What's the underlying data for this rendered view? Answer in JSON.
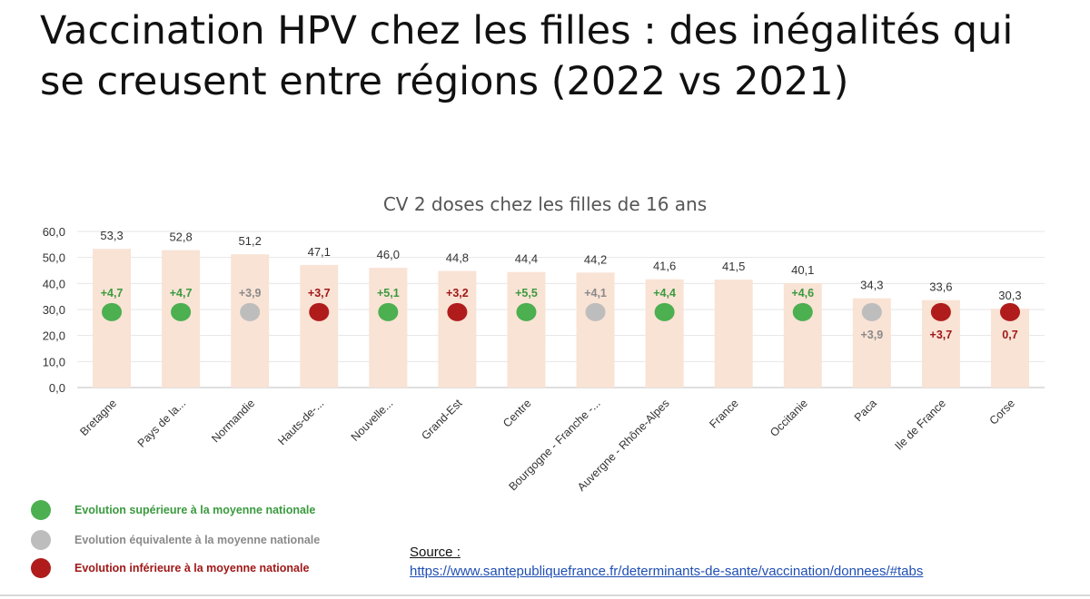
{
  "title": "Vaccination HPV chez les filles : des inégalités qui se creusent entre régions (2022 vs 2021)",
  "colors": {
    "bar": "#f9e3d5",
    "superieure": "#4caf50",
    "equivalente": "#bdbdbd",
    "inferieure": "#b01c1c",
    "superieure_text": "#3a9a3e",
    "equivalente_text": "#8a8a8a",
    "inferieure_text": "#a01818"
  },
  "chart_data": {
    "type": "bar",
    "title": "CV 2 doses chez les filles de 16 ans",
    "xlabel": "",
    "ylabel": "",
    "ylim": [
      0,
      60
    ],
    "yticks": [
      "0,0",
      "10,0",
      "20,0",
      "30,0",
      "40,0",
      "50,0",
      "60,0"
    ],
    "grid": true,
    "categories": [
      "Bretagne",
      "Pays de la...",
      "Normandie",
      "Hauts-de-...",
      "Nouvelle...",
      "Grand-Est",
      "Centre",
      "Bourgogne - Franche -...",
      "Auvergne - Rhône-Alpes",
      "France",
      "Occitanie",
      "Paca",
      "Ile de France",
      "Corse"
    ],
    "values": [
      53.3,
      52.8,
      51.2,
      47.1,
      46.0,
      44.8,
      44.4,
      44.2,
      41.6,
      41.5,
      40.1,
      34.3,
      33.6,
      30.3
    ],
    "value_labels": [
      "53,3",
      "52,8",
      "51,2",
      "47,1",
      "46,0",
      "44,8",
      "44,4",
      "44,2",
      "41,6",
      "41,5",
      "40,1",
      "34,3",
      "33,6",
      "30,3"
    ],
    "evolution": [
      {
        "label": "+4,7",
        "status": "superieure",
        "label_pos": "above"
      },
      {
        "label": "+4,7",
        "status": "superieure",
        "label_pos": "above"
      },
      {
        "label": "+3,9",
        "status": "equivalente",
        "label_pos": "above"
      },
      {
        "label": "+3,7",
        "status": "inferieure",
        "label_pos": "above"
      },
      {
        "label": "+5,1",
        "status": "superieure",
        "label_pos": "above"
      },
      {
        "label": "+3,2",
        "status": "inferieure",
        "label_pos": "above"
      },
      {
        "label": "+5,5",
        "status": "superieure",
        "label_pos": "above"
      },
      {
        "label": "+4,1",
        "status": "equivalente",
        "label_pos": "above"
      },
      {
        "label": "+4,4",
        "status": "superieure",
        "label_pos": "above"
      },
      null,
      {
        "label": "+4,6",
        "status": "superieure",
        "label_pos": "above"
      },
      {
        "label": "+3,9",
        "status": "equivalente",
        "label_pos": "below"
      },
      {
        "label": "+3,7",
        "status": "inferieure",
        "label_pos": "below"
      },
      {
        "label": "0,7",
        "status": "inferieure",
        "label_pos": "below"
      }
    ],
    "dot_level": 29
  },
  "legend": [
    {
      "status": "superieure",
      "label": "Evolution supérieure à la moyenne nationale"
    },
    {
      "status": "equivalente",
      "label": "Evolution équivalente à la moyenne nationale"
    },
    {
      "status": "inferieure",
      "label": "Evolution inférieure à la moyenne nationale"
    }
  ],
  "source": {
    "label": "Source :",
    "url": "https://www.santepubliquefrance.fr/determinants-de-sante/vaccination/donnees/#tabs"
  }
}
